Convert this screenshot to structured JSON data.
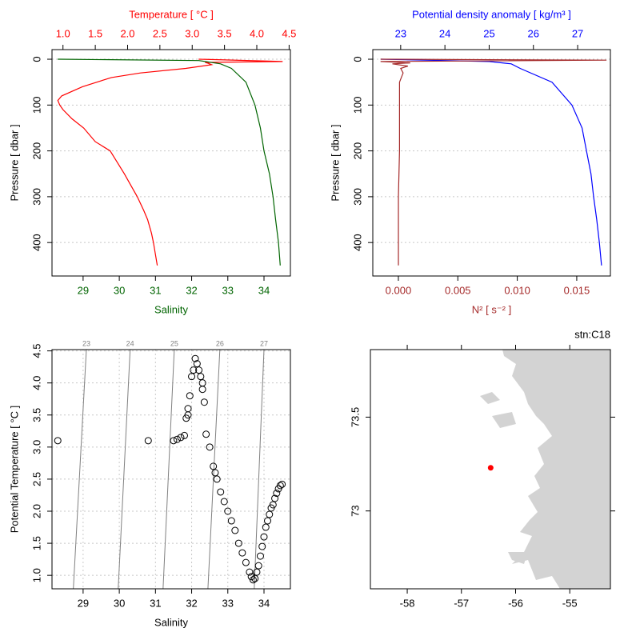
{
  "chart_data": [
    {
      "type": "profile",
      "ylabel": "Pressure [ dbar ]",
      "ylim": [
        -21,
        473
      ],
      "y_inverted": true,
      "yticks": [
        0,
        100,
        200,
        300,
        400
      ],
      "grid": true,
      "xlabel": "Salinity",
      "xlim": [
        28.14,
        34.73
      ],
      "xticks": [
        29,
        30,
        31,
        32,
        33,
        34
      ],
      "x2label": "Temperature [ °C ]",
      "x2lim": [
        0.83,
        4.52
      ],
      "x2ticks": [
        {
          "value": 1,
          "label": "1.0"
        },
        1.5,
        {
          "value": 2,
          "label": "2.0"
        },
        2.5,
        {
          "value": 3,
          "label": "3.0"
        },
        3.5,
        {
          "value": 4,
          "label": "4.0"
        },
        4.5
      ],
      "series": [
        {
          "color": "#ff0000",
          "axis": "x2",
          "pressure": [
            0,
            5,
            7,
            9,
            12,
            20,
            30,
            40,
            60,
            80,
            90,
            100,
            110,
            130,
            150,
            180,
            200,
            250,
            280,
            300,
            330,
            350,
            380,
            400,
            450
          ],
          "values": [
            3.1,
            4.4,
            3.2,
            3.25,
            3.3,
            2.9,
            2.2,
            1.75,
            1.3,
            0.98,
            0.92,
            0.95,
            1.0,
            1.14,
            1.32,
            1.5,
            1.73,
            1.95,
            2.07,
            2.15,
            2.25,
            2.31,
            2.37,
            2.4,
            2.46
          ]
        },
        {
          "color": "#006400",
          "axis": "x",
          "pressure": [
            0,
            3,
            10,
            20,
            50,
            100,
            150,
            200,
            250,
            300,
            350,
            400,
            450
          ],
          "values": [
            28.3,
            32.2,
            32.8,
            33.1,
            33.5,
            33.75,
            33.9,
            34.0,
            34.15,
            34.25,
            34.32,
            34.4,
            34.45
          ]
        }
      ]
    },
    {
      "type": "profile",
      "ylabel": "Pressure [ dbar ]",
      "ylim": [
        -21,
        473
      ],
      "y_inverted": true,
      "yticks": [
        0,
        100,
        200,
        300,
        400
      ],
      "grid": true,
      "xlabel": "N² [ s⁻² ]",
      "xlim": [
        -0.00215,
        0.01783
      ],
      "xticks": [
        {
          "value": 0,
          "label": "0.000"
        },
        0.005,
        {
          "value": 0.01,
          "label": "0.010"
        },
        0.015
      ],
      "x2label": "Potential density anomaly [ kg/m³ ]",
      "x2lim": [
        22.37,
        27.74
      ],
      "x2ticks": [
        23,
        24,
        25,
        26,
        27
      ],
      "series": [
        {
          "color": "#0000ff",
          "axis": "x2",
          "pressure": [
            0,
            5,
            10,
            20,
            50,
            100,
            150,
            200,
            250,
            300,
            350,
            400,
            450
          ],
          "values": [
            22.55,
            25.0,
            25.5,
            25.7,
            26.42,
            26.87,
            27.1,
            27.2,
            27.3,
            27.36,
            27.43,
            27.49,
            27.54
          ]
        },
        {
          "color": "#a52a2a",
          "axis": "x",
          "pressure": [
            0,
            2,
            5,
            8,
            10,
            15,
            20,
            30,
            50,
            100,
            200,
            300,
            450
          ],
          "values": [
            -0.0015,
            0.0175,
            -0.0015,
            0.001,
            -0.0005,
            0.0008,
            0.0002,
            0.0004,
            0.0001,
            0.0001,
            0.0001,
            0.0,
            0.0
          ]
        }
      ]
    },
    {
      "type": "ts",
      "xlabel": "Salinity",
      "ylabel": "Potential Temperature [ °C ]",
      "grid": true,
      "xlim": [
        28.14,
        34.73
      ],
      "xticks": [
        29,
        30,
        31,
        32,
        33,
        34
      ],
      "ylim": [
        0.79,
        4.52
      ],
      "yticks": [
        {
          "value": 1,
          "label": "1.0"
        },
        1.5,
        {
          "value": 2,
          "label": "2.0"
        },
        2.5,
        {
          "value": 3,
          "label": "3.0"
        },
        3.5,
        {
          "value": 4,
          "label": "4.0"
        },
        4.5
      ],
      "isopycnals": [
        {
          "level": 23,
          "salinity": [
            29.09,
            28.73
          ]
        },
        {
          "level": 24,
          "salinity": [
            30.3,
            29.97
          ]
        },
        {
          "level": 25,
          "salinity": [
            31.52,
            31.21
          ]
        },
        {
          "level": 26,
          "salinity": [
            32.78,
            32.45
          ]
        },
        {
          "level": 27,
          "salinity": [
            34.0,
            33.73
          ]
        }
      ],
      "x": [
        28.3,
        30.8,
        31.5,
        31.6,
        31.7,
        31.8,
        31.85,
        31.9,
        31.9,
        31.95,
        32.0,
        32.05,
        32.1,
        32.15,
        32.2,
        32.25,
        32.3,
        32.3,
        32.35,
        32.4,
        32.5,
        32.6,
        32.65,
        32.7,
        32.8,
        32.9,
        33.0,
        33.1,
        33.2,
        33.3,
        33.4,
        33.5,
        33.6,
        33.65,
        33.7,
        33.75,
        33.8,
        33.85,
        33.9,
        33.95,
        34.0,
        34.05,
        34.1,
        34.15,
        34.2,
        34.25,
        34.3,
        34.35,
        34.4,
        34.45,
        34.5
      ],
      "values": [
        3.1,
        3.1,
        3.1,
        3.12,
        3.15,
        3.18,
        3.45,
        3.5,
        3.6,
        3.8,
        4.1,
        4.2,
        4.38,
        4.3,
        4.2,
        4.1,
        4.0,
        3.9,
        3.7,
        3.2,
        3.0,
        2.7,
        2.6,
        2.5,
        2.3,
        2.15,
        2.0,
        1.85,
        1.7,
        1.5,
        1.35,
        1.2,
        1.05,
        0.98,
        0.93,
        0.95,
        1.05,
        1.15,
        1.3,
        1.45,
        1.6,
        1.75,
        1.85,
        1.95,
        2.05,
        2.1,
        2.2,
        2.28,
        2.35,
        2.4,
        2.42
      ]
    },
    {
      "type": "map",
      "xlim": [
        -58.68,
        -54.25
      ],
      "xticks": [
        -58,
        -57,
        -56,
        -55
      ],
      "ylim": [
        72.585,
        73.86
      ],
      "yticks": [
        73,
        73.5
      ],
      "station": {
        "label": "stn:C18",
        "lon": -56.46,
        "lat": 73.23,
        "color": "#ff0000"
      }
    }
  ]
}
